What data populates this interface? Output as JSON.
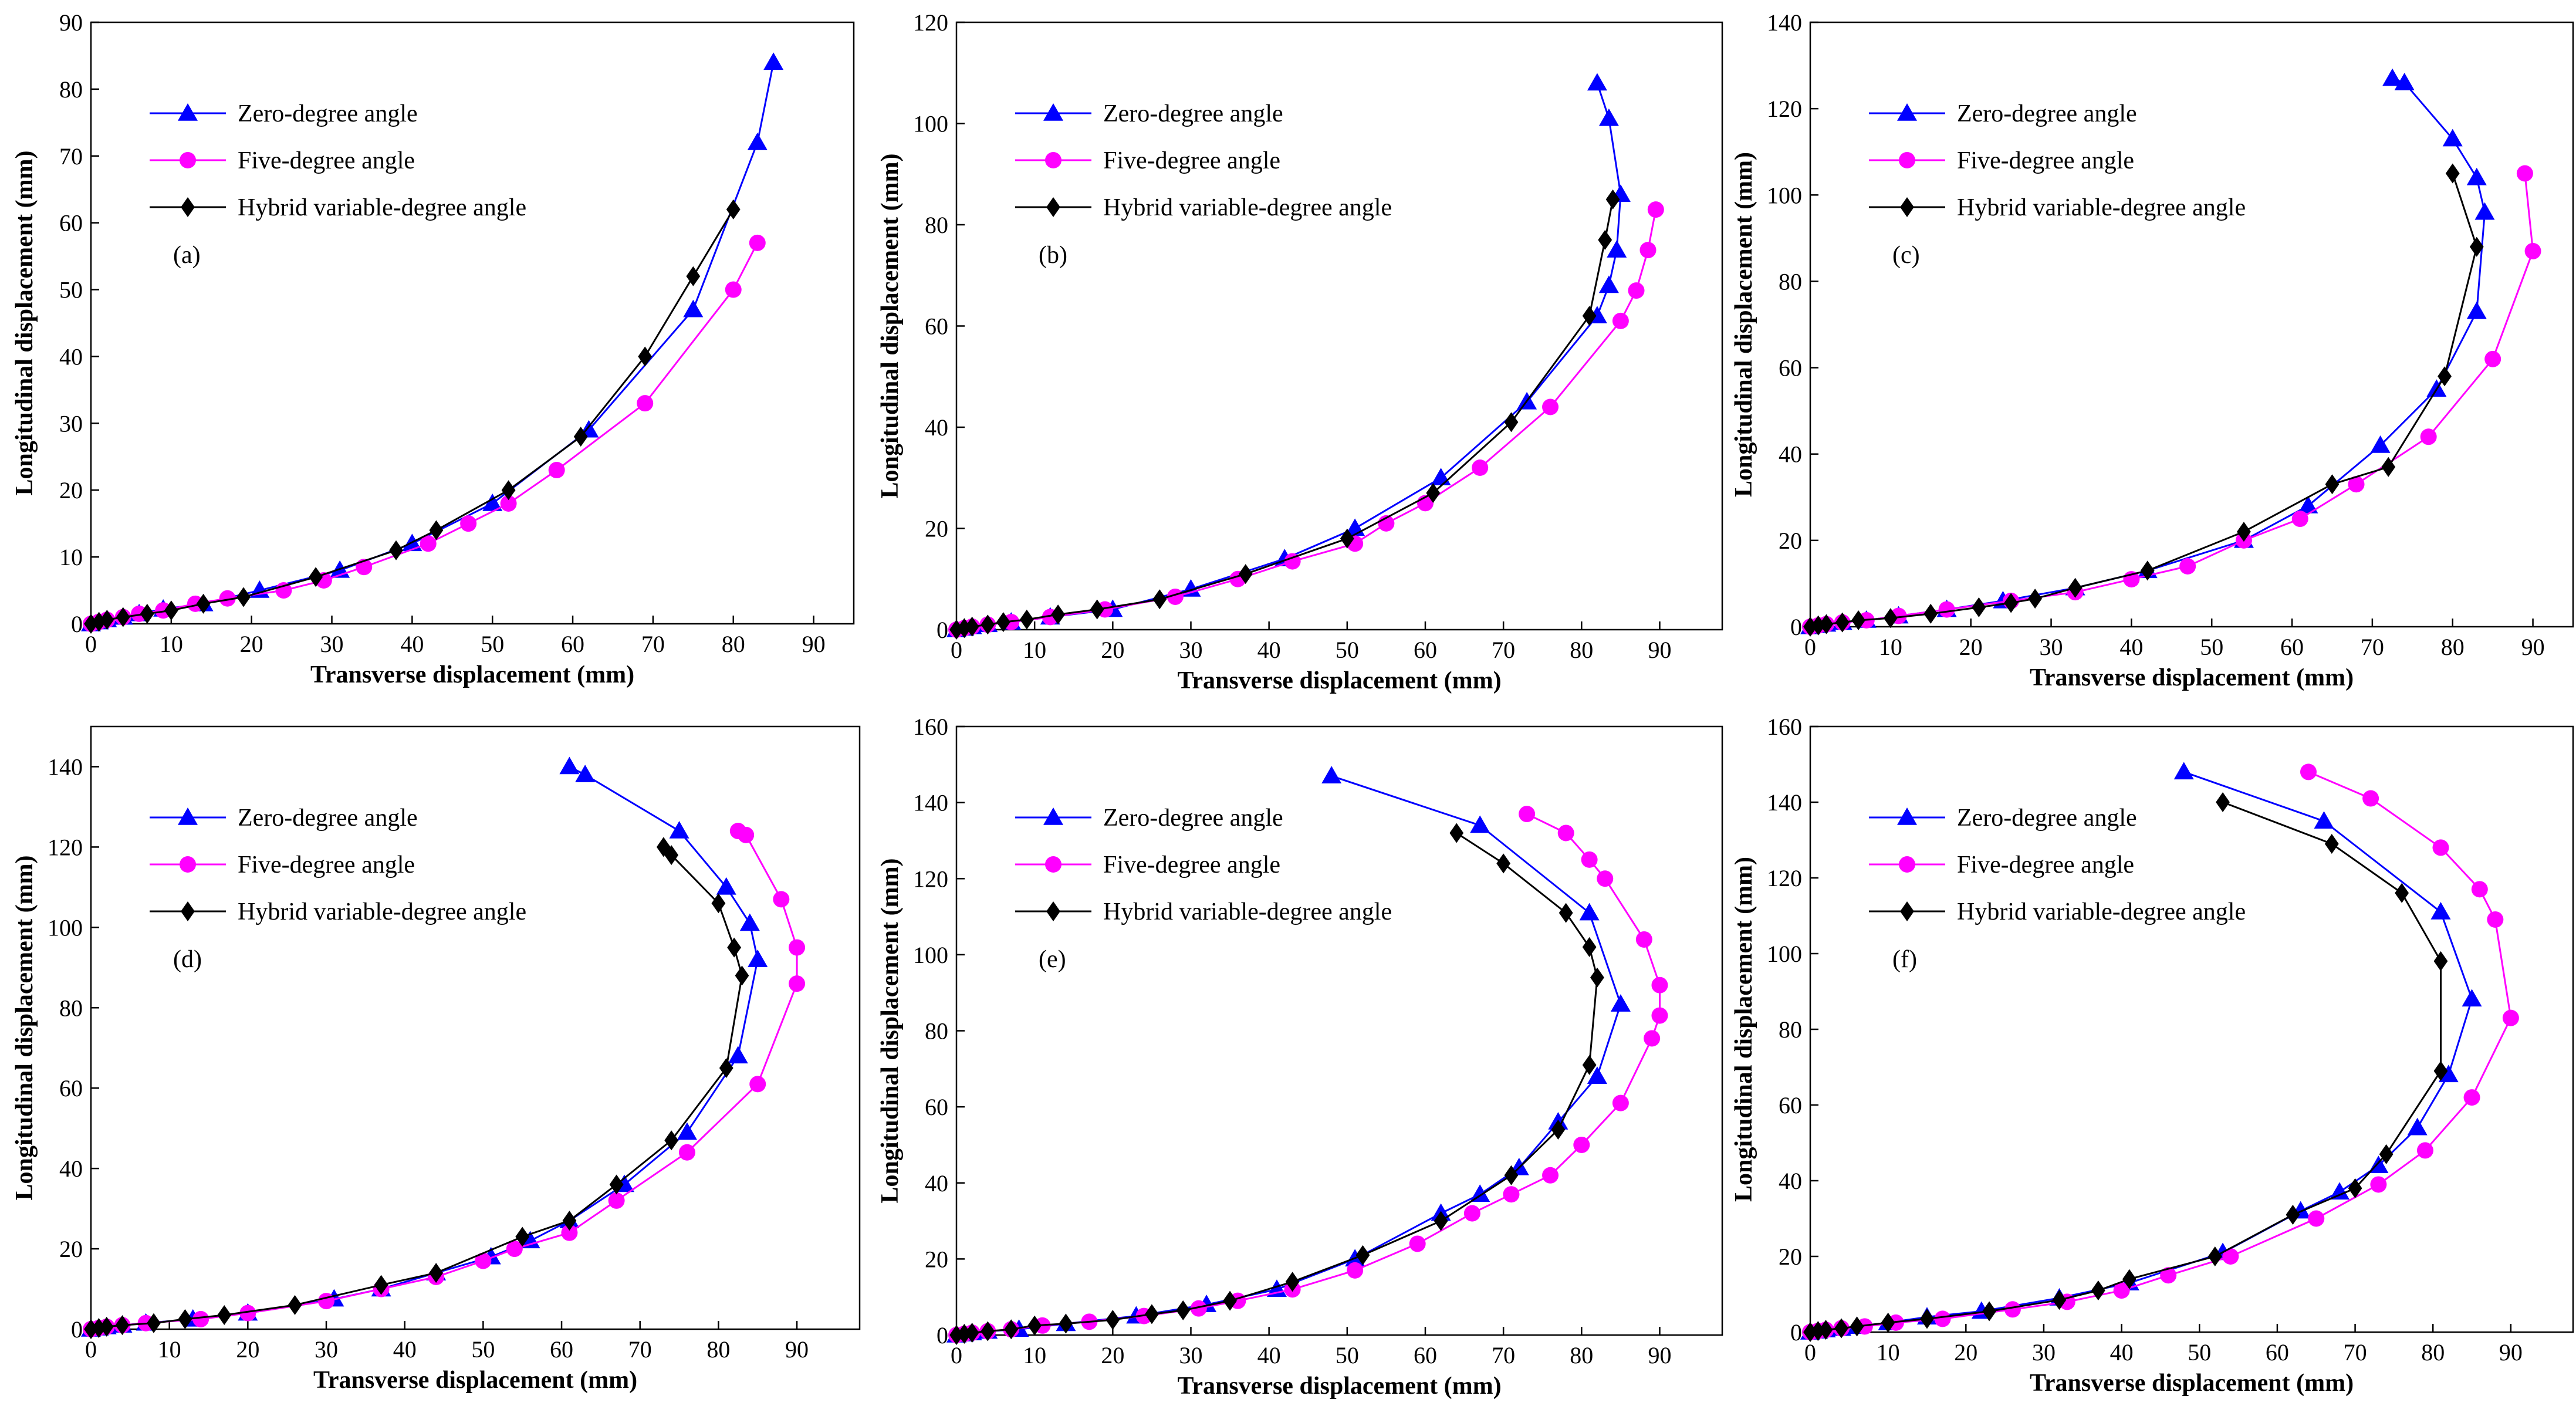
{
  "chart_data": [
    {
      "type": "line",
      "panel_label": "(a)",
      "xlabel": "Transverse displacement (mm)",
      "ylabel": "Longitudinal displacement (mm)",
      "xlim": [
        0,
        95
      ],
      "ylim": [
        0,
        90
      ],
      "xticks": [
        0,
        10,
        20,
        30,
        40,
        50,
        60,
        70,
        80,
        90
      ],
      "yticks": [
        0,
        10,
        20,
        30,
        40,
        50,
        60,
        70,
        80,
        90
      ],
      "legend_position": "top-left",
      "series": [
        {
          "name": "Zero-degree angle",
          "marker": "triangle",
          "color": "#0000ff",
          "x": [
            0,
            1,
            2,
            4,
            6,
            9,
            14,
            21,
            31,
            40,
            50,
            62,
            75,
            83,
            85
          ],
          "y": [
            0,
            0.3,
            0.6,
            1,
            1.5,
            2.2,
            3,
            5,
            8,
            12,
            18,
            29,
            47,
            72,
            84
          ]
        },
        {
          "name": "Five-degree angle",
          "marker": "circle",
          "color": "#ff00ff",
          "x": [
            0,
            1,
            2,
            4,
            6,
            9,
            13,
            17,
            24,
            29,
            34,
            42,
            47,
            52,
            58,
            69,
            80,
            83
          ],
          "y": [
            0,
            0.3,
            0.6,
            1,
            1.5,
            2,
            3,
            3.8,
            5,
            6.5,
            8.5,
            12,
            15,
            18,
            23,
            33,
            50,
            57
          ]
        },
        {
          "name": "Hybrid variable-degree angle",
          "marker": "diamond",
          "color": "#000000",
          "x": [
            0,
            1,
            2,
            4,
            7,
            10,
            14,
            19,
            28,
            38,
            43,
            52,
            61,
            69,
            75,
            80
          ],
          "y": [
            0,
            0.3,
            0.6,
            1,
            1.5,
            2,
            3,
            4,
            7,
            11,
            14,
            20,
            28,
            40,
            52,
            62
          ]
        }
      ]
    },
    {
      "type": "line",
      "panel_label": "(b)",
      "xlabel": "Transverse displacement (mm)",
      "ylabel": "Longitudinal displacement (mm)",
      "xlim": [
        0,
        98
      ],
      "ylim": [
        0,
        120
      ],
      "xticks": [
        0,
        10,
        20,
        30,
        40,
        50,
        60,
        70,
        80,
        90
      ],
      "yticks": [
        0,
        20,
        40,
        60,
        80,
        100,
        120
      ],
      "legend_position": "top-left",
      "series": [
        {
          "name": "Zero-degree angle",
          "marker": "triangle",
          "color": "#0000ff",
          "x": [
            0,
            1,
            2,
            4,
            7,
            12,
            20,
            30,
            42,
            51,
            62,
            73,
            82,
            83.5,
            84.5,
            85,
            83.5,
            82
          ],
          "y": [
            0,
            0.3,
            0.6,
            1,
            1.5,
            2.5,
            4,
            8,
            14,
            20,
            30,
            45,
            62,
            68,
            75,
            86,
            101,
            108
          ]
        },
        {
          "name": "Five-degree angle",
          "marker": "circle",
          "color": "#ff00ff",
          "x": [
            0,
            1,
            2,
            4,
            7,
            12,
            19,
            28,
            36,
            43,
            51,
            55,
            60,
            67,
            76,
            85,
            87,
            88.5,
            89.5
          ],
          "y": [
            0,
            0.3,
            0.6,
            1,
            1.5,
            2.5,
            4,
            6.5,
            10,
            13.5,
            17,
            21,
            25,
            32,
            44,
            61,
            67,
            75,
            83
          ]
        },
        {
          "name": "Hybrid variable-degree angle",
          "marker": "diamond",
          "color": "#000000",
          "x": [
            0,
            1,
            2,
            4,
            6,
            9,
            13,
            18,
            26,
            37,
            50,
            61,
            71,
            81,
            83,
            84
          ],
          "y": [
            0,
            0.3,
            0.6,
            1,
            1.5,
            2,
            3,
            4,
            6,
            11,
            18,
            27,
            41,
            62,
            77,
            85
          ]
        }
      ]
    },
    {
      "type": "line",
      "panel_label": "(c)",
      "xlabel": "Transverse displacement (mm)",
      "ylabel": "Longitudinal displacement (mm)",
      "xlim": [
        0,
        95
      ],
      "ylim": [
        0,
        140
      ],
      "xticks": [
        0,
        10,
        20,
        30,
        40,
        50,
        60,
        70,
        80,
        90
      ],
      "yticks": [
        0,
        20,
        40,
        60,
        80,
        100,
        120,
        140
      ],
      "legend_position": "top-left",
      "series": [
        {
          "name": "Zero-degree angle",
          "marker": "triangle",
          "color": "#0000ff",
          "x": [
            0,
            1,
            2,
            4,
            7,
            11,
            17,
            24,
            33,
            42,
            54,
            62,
            71,
            78,
            83,
            84,
            83,
            80,
            74,
            72.5
          ],
          "y": [
            0,
            0.3,
            0.6,
            1,
            1.5,
            2.5,
            4,
            6,
            9,
            13,
            20,
            28,
            42,
            55,
            73,
            96,
            104,
            113,
            126,
            127
          ]
        },
        {
          "name": "Five-degree angle",
          "marker": "circle",
          "color": "#ff00ff",
          "x": [
            0,
            1,
            2,
            4,
            7,
            11,
            17,
            25,
            33,
            40,
            47,
            54,
            61,
            68,
            77,
            85,
            90,
            89
          ],
          "y": [
            0,
            0.3,
            0.6,
            1,
            1.5,
            2.5,
            4,
            6,
            8,
            11,
            14,
            20,
            25,
            33,
            44,
            62,
            87,
            105
          ]
        },
        {
          "name": "Hybrid variable-degree angle",
          "marker": "diamond",
          "color": "#000000",
          "x": [
            0,
            1,
            2,
            4,
            6,
            10,
            15,
            21,
            25,
            28,
            33,
            42,
            54,
            65,
            72,
            79,
            83,
            80
          ],
          "y": [
            0,
            0.3,
            0.6,
            1,
            1.5,
            2,
            3,
            4.5,
            5.5,
            6.5,
            9,
            13,
            22,
            33,
            37,
            58,
            88,
            105
          ]
        }
      ]
    },
    {
      "type": "line",
      "panel_label": "(d)",
      "xlabel": "Transverse displacement (mm)",
      "ylabel": "Longitudinal displacement (mm)",
      "xlim": [
        0,
        98
      ],
      "ylim": [
        0,
        150
      ],
      "xticks": [
        0,
        10,
        20,
        30,
        40,
        50,
        60,
        70,
        80,
        90
      ],
      "yticks": [
        0,
        20,
        40,
        60,
        80,
        100,
        120,
        140
      ],
      "legend_position": "top-left",
      "series": [
        {
          "name": "Zero-degree angle",
          "marker": "triangle",
          "color": "#0000ff",
          "x": [
            0,
            1,
            2,
            4,
            7,
            13,
            20,
            31,
            37,
            44,
            51,
            56,
            61,
            68,
            76,
            82.5,
            85,
            84,
            81,
            75,
            63,
            61
          ],
          "y": [
            0,
            0.3,
            0.6,
            1,
            1.5,
            2.5,
            4,
            7.5,
            10,
            14,
            18,
            22,
            27,
            36,
            49,
            68,
            92,
            101,
            110,
            124,
            138,
            140
          ]
        },
        {
          "name": "Five-degree angle",
          "marker": "circle",
          "color": "#ff00ff",
          "x": [
            0,
            1,
            2,
            4,
            7,
            14,
            20,
            30,
            37,
            44,
            50,
            54,
            61,
            67,
            76,
            85,
            90,
            90,
            88,
            83.5,
            82.5
          ],
          "y": [
            0,
            0.3,
            0.6,
            1,
            1.5,
            2.5,
            4,
            7,
            10,
            13,
            17,
            20,
            24,
            32,
            44,
            61,
            86,
            95,
            107,
            123,
            124
          ]
        },
        {
          "name": "Hybrid variable-degree angle",
          "marker": "diamond",
          "color": "#000000",
          "x": [
            0,
            1,
            2,
            4,
            8,
            12,
            17,
            26,
            37,
            44,
            55,
            61,
            67,
            74,
            81,
            83,
            82,
            80,
            74,
            73
          ],
          "y": [
            0,
            0.3,
            0.6,
            1,
            1.5,
            2.5,
            3.5,
            6,
            11,
            14,
            23,
            27,
            36,
            47,
            65,
            88,
            95,
            106,
            118,
            120
          ]
        }
      ]
    },
    {
      "type": "line",
      "panel_label": "(e)",
      "xlabel": "Transverse displacement (mm)",
      "ylabel": "Longitudinal displacement (mm)",
      "xlim": [
        0,
        98
      ],
      "ylim": [
        0,
        160
      ],
      "xticks": [
        0,
        10,
        20,
        30,
        40,
        50,
        60,
        70,
        80,
        90
      ],
      "yticks": [
        0,
        20,
        40,
        60,
        80,
        100,
        120,
        140,
        160
      ],
      "legend_position": "top-left",
      "series": [
        {
          "name": "Zero-degree angle",
          "marker": "triangle",
          "color": "#0000ff",
          "x": [
            0,
            1,
            2,
            4,
            8,
            14,
            23,
            32,
            41,
            51,
            62,
            67,
            72,
            77,
            82,
            85,
            81,
            67,
            48
          ],
          "y": [
            0,
            0.3,
            0.6,
            1,
            1.5,
            3,
            5,
            8,
            12,
            20,
            32,
            37,
            44,
            56,
            68,
            87,
            111,
            134,
            147
          ]
        },
        {
          "name": "Five-degree angle",
          "marker": "circle",
          "color": "#ff00ff",
          "x": [
            0,
            1,
            2,
            4,
            7,
            11,
            17,
            24,
            31,
            36,
            43,
            51,
            59,
            66,
            71,
            76,
            80,
            85,
            89,
            90,
            90,
            88,
            83,
            81,
            78,
            73
          ],
          "y": [
            0,
            0.3,
            0.6,
            1,
            1.5,
            2.5,
            3.5,
            5,
            7,
            9,
            12,
            17,
            24,
            32,
            37,
            42,
            50,
            61,
            78,
            84,
            92,
            104,
            120,
            125,
            132,
            137
          ]
        },
        {
          "name": "Hybrid variable-degree angle",
          "marker": "diamond",
          "color": "#000000",
          "x": [
            0,
            1,
            2,
            4,
            7,
            10,
            14,
            20,
            25,
            29,
            35,
            43,
            52,
            62,
            71,
            77,
            81,
            82,
            81,
            78,
            70,
            64
          ],
          "y": [
            0,
            0.3,
            0.6,
            1,
            1.5,
            2.5,
            3,
            4,
            5.5,
            6.5,
            9,
            14,
            21,
            30,
            42,
            54,
            71,
            94,
            102,
            111,
            124,
            132
          ]
        }
      ]
    },
    {
      "type": "line",
      "panel_label": "(f)",
      "xlabel": "Transverse displacement (mm)",
      "ylabel": "Longitudinal displacement (mm)",
      "xlim": [
        0,
        98
      ],
      "ylim": [
        0,
        160
      ],
      "xticks": [
        0,
        10,
        20,
        30,
        40,
        50,
        60,
        70,
        80,
        90
      ],
      "yticks": [
        0,
        20,
        40,
        60,
        80,
        100,
        120,
        140,
        160
      ],
      "legend_position": "top-left",
      "series": [
        {
          "name": "Zero-degree angle",
          "marker": "triangle",
          "color": "#0000ff",
          "x": [
            0,
            1,
            2,
            4,
            6,
            10,
            15,
            22,
            32,
            41,
            53,
            63,
            68,
            73,
            78,
            82,
            85,
            81,
            66,
            48
          ],
          "y": [
            0,
            0.3,
            0.6,
            1,
            1.5,
            2.5,
            4,
            5.5,
            9,
            13,
            21,
            32,
            37,
            44,
            54,
            68,
            88,
            111,
            135,
            148
          ]
        },
        {
          "name": "Five-degree angle",
          "marker": "circle",
          "color": "#ff00ff",
          "x": [
            0,
            1,
            2,
            4,
            7,
            11,
            17,
            26,
            33,
            40,
            46,
            54,
            65,
            73,
            79,
            85,
            90,
            88,
            86,
            81,
            72,
            64
          ],
          "y": [
            0,
            0.3,
            0.6,
            1,
            1.5,
            2.5,
            3.5,
            6,
            8,
            11,
            15,
            20,
            30,
            39,
            48,
            62,
            83,
            109,
            117,
            128,
            141,
            148
          ]
        },
        {
          "name": "Hybrid variable-degree angle",
          "marker": "diamond",
          "color": "#000000",
          "x": [
            0,
            1,
            2,
            4,
            6,
            10,
            15,
            23,
            32,
            37,
            41,
            52,
            62,
            70,
            74,
            81,
            81,
            76,
            67,
            53
          ],
          "y": [
            0,
            0.3,
            0.6,
            1,
            1.5,
            2.5,
            3.5,
            5.5,
            8.5,
            11,
            14,
            20,
            31,
            38,
            47,
            69,
            98,
            116,
            129,
            140
          ]
        }
      ]
    }
  ]
}
